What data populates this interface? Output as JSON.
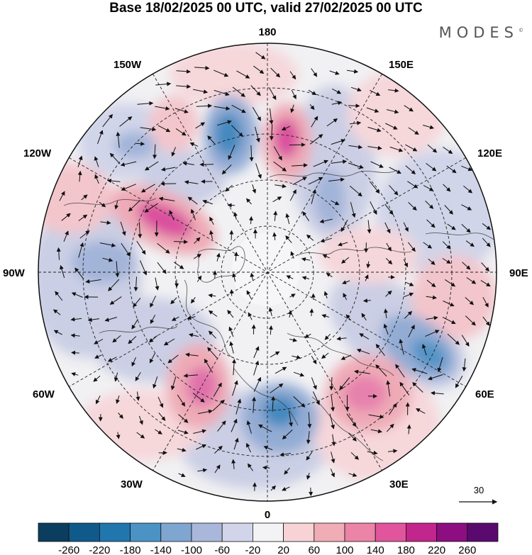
{
  "title": "Base 18/02/2025 00 UTC, valid 27/02/2025 00 UTC",
  "brand": "MODES",
  "brand_mark": "©",
  "longitude_labels": {
    "top": "180",
    "bottom": "0",
    "left": "90W",
    "right": "90E",
    "upper_left": "150W",
    "upper_right": "150E",
    "mid_upper_left": "120W",
    "mid_upper_right": "120E",
    "mid_lower_left": "60W",
    "mid_lower_right": "60E",
    "lower_left": "30W",
    "lower_right": "30E"
  },
  "reference_vector": {
    "label": "30"
  },
  "colorbar": {
    "ticks": [
      "-260",
      "-220",
      "-180",
      "-140",
      "-100",
      "-60",
      "-20",
      "20",
      "60",
      "100",
      "140",
      "180",
      "220",
      "260"
    ],
    "colors": [
      "#0b3d5e",
      "#0f5a8a",
      "#2176ae",
      "#4a93c4",
      "#7fa6d0",
      "#a9b8da",
      "#d2d5ea",
      "#f3f3f5",
      "#f7d3d6",
      "#f0adb6",
      "#eb84a6",
      "#e0559c",
      "#c2258c",
      "#8c0e80",
      "#5a0a6e"
    ]
  },
  "anomaly_colors": {
    "strong_negative": "#2f7fba",
    "moderate_negative": "#7fa6d0",
    "weak_negative": "#d2d5ea",
    "weak_positive": "#f7d3d6",
    "moderate_positive": "#f0adb6",
    "strong_positive": "#e0559c",
    "extreme_positive": "#c2258c"
  }
}
